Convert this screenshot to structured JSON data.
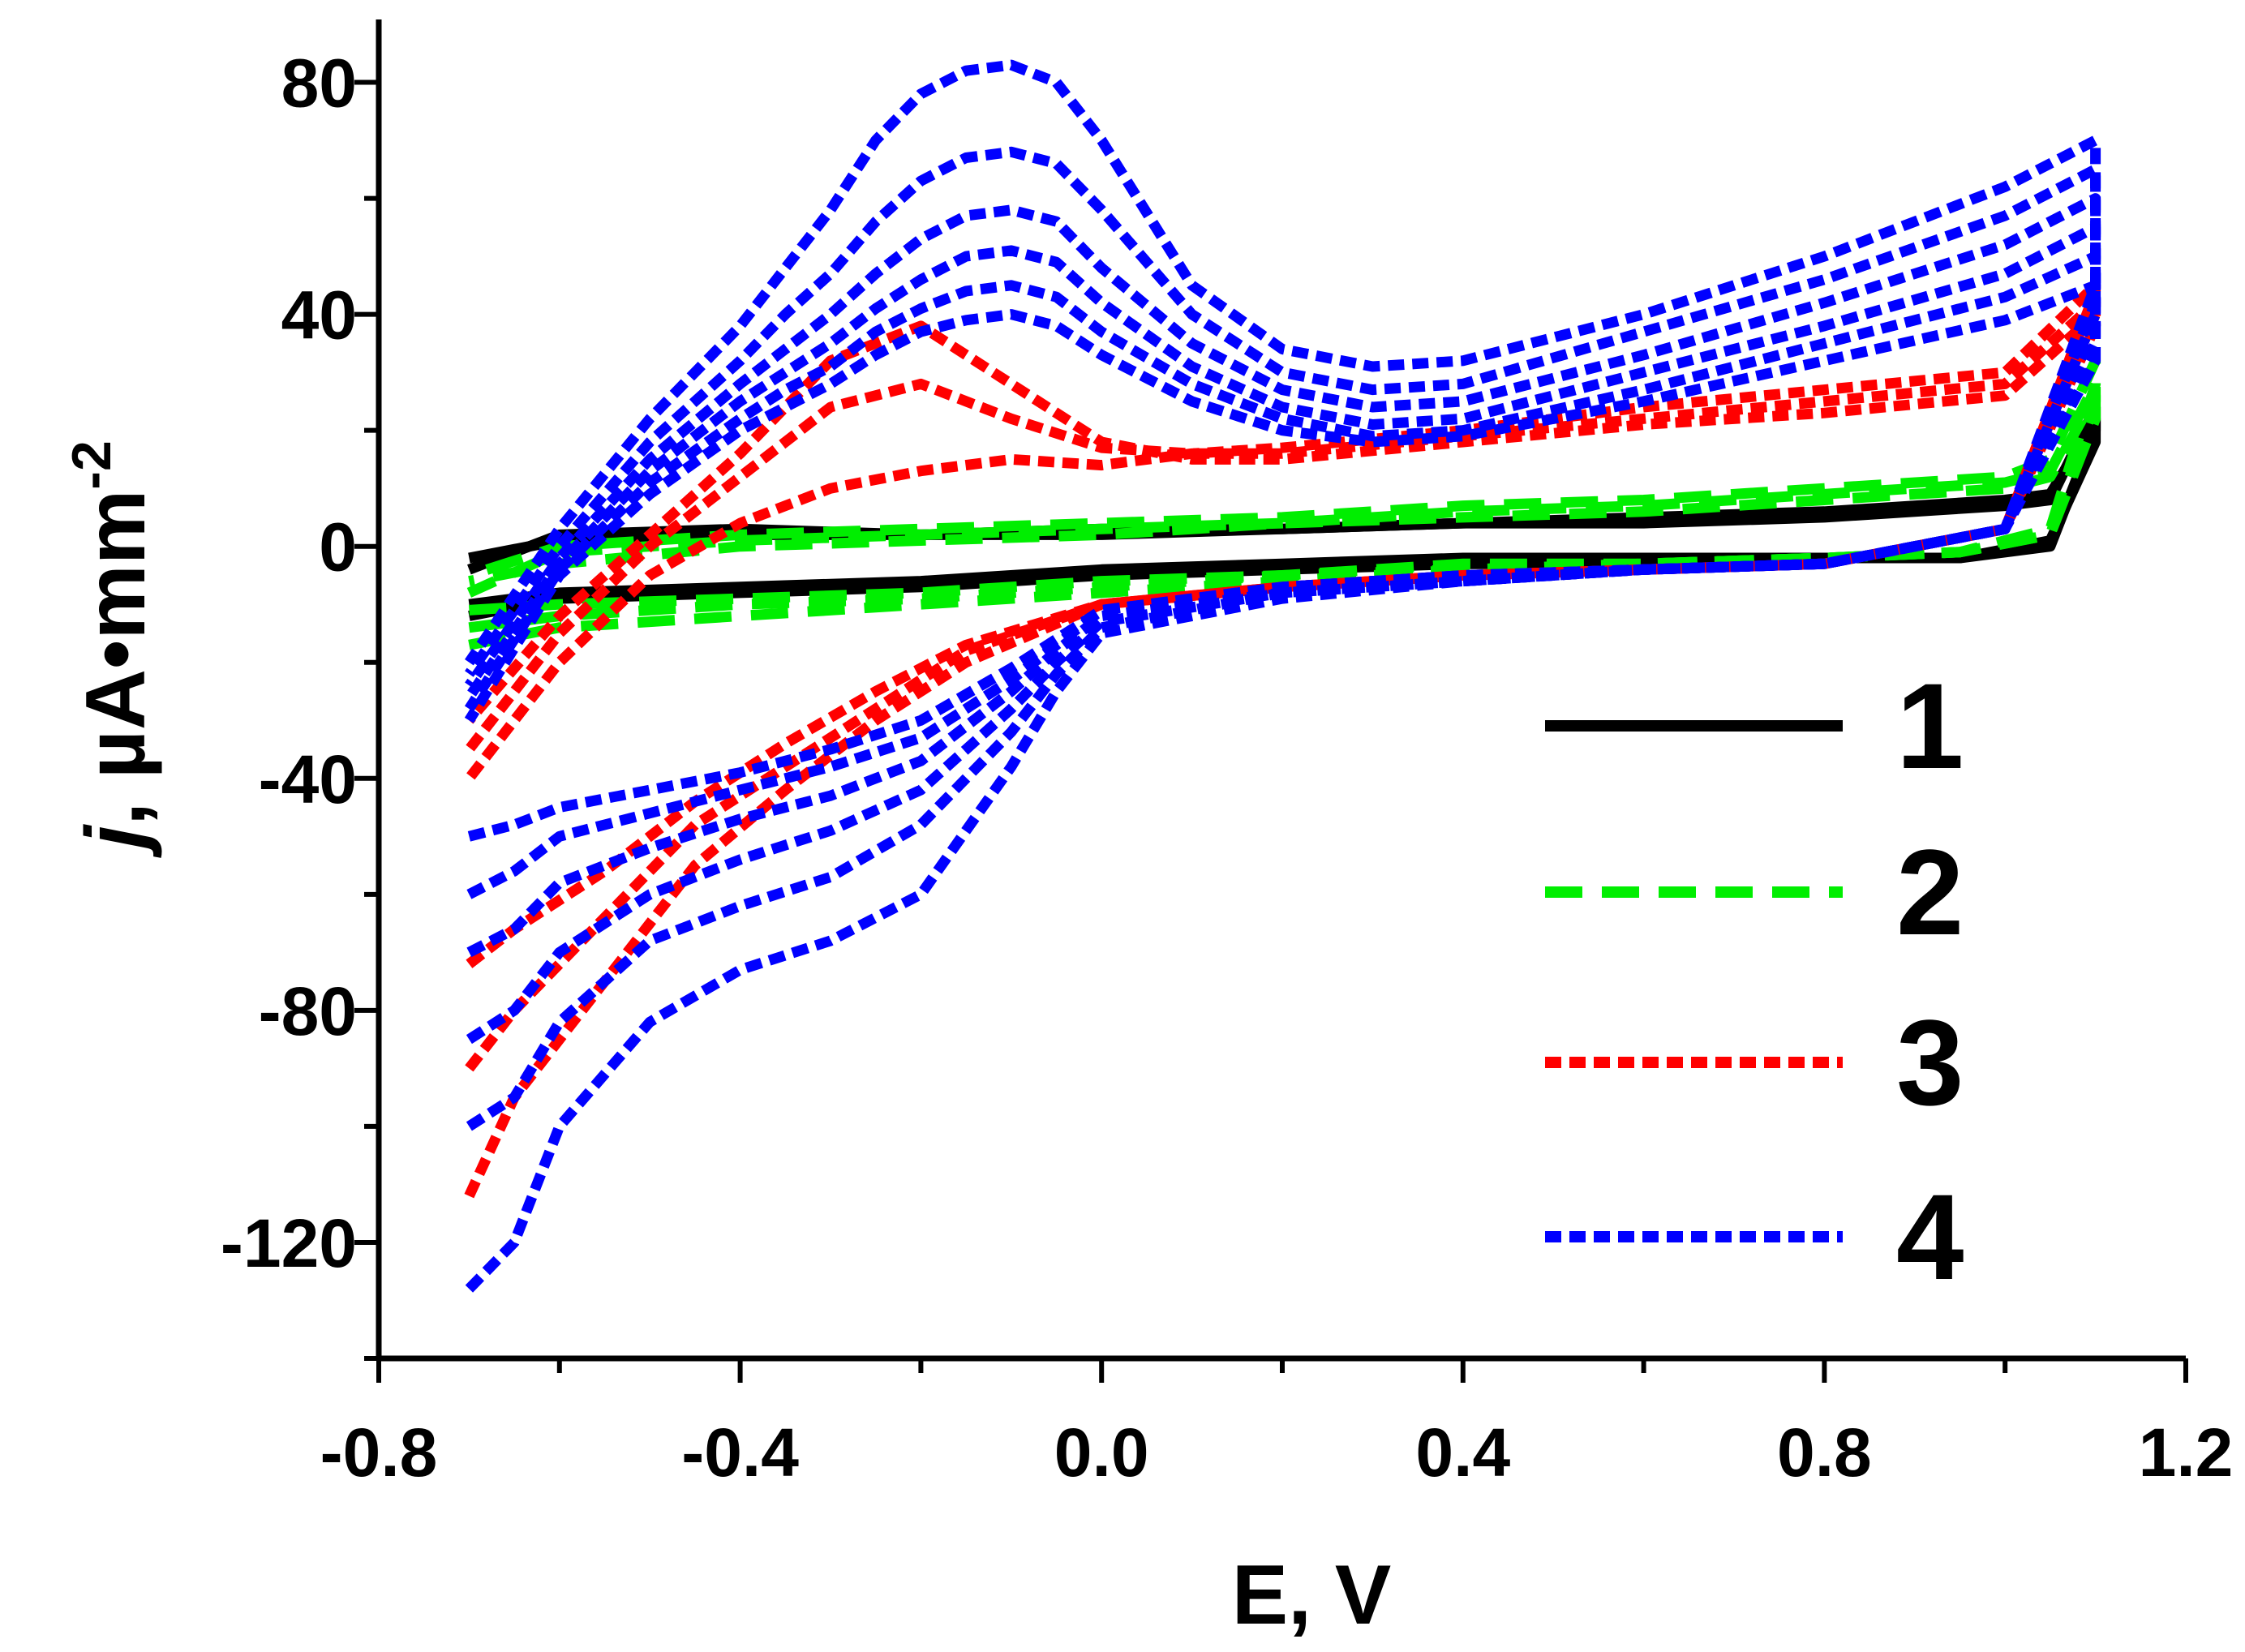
{
  "chart_data": {
    "type": "line",
    "title": "",
    "xlabel": "E, V",
    "ylabel": {
      "italic": "j",
      "rest": ", µA•mm",
      "sup": "-2"
    },
    "xlim": [
      -0.8,
      1.2
    ],
    "ylim": [
      -140,
      90
    ],
    "xticks": [
      -0.8,
      -0.4,
      0.0,
      0.4,
      0.8,
      1.2
    ],
    "xtick_labels": [
      "-0.8",
      "-0.4",
      "0.0",
      "0.4",
      "0.8",
      "1.2"
    ],
    "yticks": [
      80,
      40,
      0,
      -40,
      -80,
      -120
    ],
    "ytick_labels": [
      "80",
      "40",
      "0",
      "-40",
      "-80",
      "-120"
    ],
    "legend_position": "lower-right",
    "series": [
      {
        "name": "1",
        "color": "#000000",
        "dash": "solid",
        "cycles": [
          {
            "x": [
              -0.7,
              -0.6,
              -0.4,
              -0.2,
              0.0,
              0.2,
              0.4,
              0.6,
              0.8,
              0.95,
              1.05,
              1.1,
              1.1,
              1.05,
              1.0,
              0.8,
              0.6,
              0.4,
              0.2,
              0.0,
              -0.2,
              -0.4,
              -0.6,
              -0.7
            ],
            "y": [
              -10,
              -8,
              -7,
              -6,
              -4,
              -3,
              -2,
              -2,
              -2,
              -2,
              0,
              20,
              24,
              8,
              7,
              5,
              4,
              4,
              3,
              2,
              2,
              2,
              1,
              -2
            ]
          },
          {
            "x": [
              -0.7,
              -0.6,
              -0.4,
              -0.2,
              0.0,
              0.2,
              0.4,
              0.6,
              0.8,
              0.95,
              1.05,
              1.1,
              1.1,
              1.05,
              1.0,
              0.8,
              0.6,
              0.4,
              0.2,
              0.0,
              -0.2,
              -0.4,
              -0.6,
              -0.7
            ],
            "y": [
              -12,
              -9,
              -8,
              -7,
              -5,
              -4,
              -3,
              -3,
              -2,
              -2,
              1,
              18,
              22,
              9,
              8,
              6,
              5,
              4,
              3,
              3,
              2,
              3,
              2,
              -4
            ]
          }
        ]
      },
      {
        "name": "2",
        "color": "#00ee00",
        "dash": "long-dash",
        "cycles": [
          {
            "x": [
              -0.7,
              -0.6,
              -0.4,
              -0.2,
              0.0,
              0.2,
              0.4,
              0.6,
              0.8,
              0.95,
              1.05,
              1.1,
              1.1,
              1.05,
              1.0,
              0.8,
              0.6,
              0.4,
              0.2,
              0.0,
              -0.2,
              -0.4,
              -0.6,
              -0.7
            ],
            "y": [
              -17,
              -14,
              -12,
              -10,
              -8,
              -6,
              -4,
              -3,
              -2,
              -1,
              3,
              28,
              32,
              15,
              12,
              10,
              8,
              7,
              5,
              4,
              3,
              2,
              0,
              -5
            ]
          },
          {
            "x": [
              -0.7,
              -0.6,
              -0.4,
              -0.2,
              0.0,
              0.2,
              0.4,
              0.6,
              0.8,
              0.95,
              1.05,
              1.1,
              1.1,
              1.05,
              1.0,
              0.8,
              0.6,
              0.4,
              0.2,
              0.0,
              -0.2,
              -0.4,
              -0.6,
              -0.7
            ],
            "y": [
              -14,
              -12,
              -10,
              -9,
              -7,
              -5,
              -4,
              -3,
              -2,
              -1,
              2,
              25,
              28,
              13,
              11,
              9,
              7,
              6,
              4,
              3,
              2,
              1,
              -1,
              -8
            ]
          },
          {
            "x": [
              -0.7,
              -0.6,
              -0.4,
              -0.2,
              0.0,
              0.2,
              0.4,
              0.6,
              0.8,
              0.95,
              1.05,
              1.1,
              1.1,
              1.05,
              1.0,
              0.8,
              0.6,
              0.4,
              0.2,
              0.0,
              -0.2,
              -0.4,
              -0.6,
              -0.7
            ],
            "y": [
              -11,
              -10,
              -9,
              -8,
              -6,
              -5,
              -3,
              -3,
              -2,
              -1,
              2,
              22,
              26,
              12,
              10,
              8,
              6,
              5,
              4,
              2,
              1,
              0,
              -3,
              -6
            ]
          }
        ]
      },
      {
        "name": "3",
        "color": "#ff0000",
        "dash": "short-dash",
        "cycles": [
          {
            "x": [
              -0.7,
              -0.65,
              -0.55,
              -0.45,
              -0.35,
              -0.25,
              -0.15,
              0.0,
              0.2,
              0.4,
              0.6,
              0.8,
              1.0,
              1.1,
              1.1,
              1.0,
              0.8,
              0.6,
              0.4,
              0.2,
              0.1,
              0.0,
              -0.1,
              -0.2,
              -0.3,
              -0.4,
              -0.5,
              -0.6,
              -0.7
            ],
            "y": [
              -112,
              -95,
              -75,
              -55,
              -42,
              -30,
              -20,
              -10,
              -7,
              -5,
              -4,
              -3,
              3,
              44,
              45,
              30,
              27,
              24,
              20,
              17,
              16,
              14,
              15,
              13,
              10,
              4,
              -5,
              -20,
              -40
            ]
          },
          {
            "x": [
              -0.7,
              -0.65,
              -0.55,
              -0.45,
              -0.35,
              -0.25,
              -0.15,
              0.0,
              0.2,
              0.4,
              0.6,
              0.8,
              1.0,
              1.1,
              1.1,
              1.0,
              0.8,
              0.6,
              0.4,
              0.2,
              0.1,
              0.0,
              -0.1,
              -0.2,
              -0.3,
              -0.4,
              -0.5,
              -0.6,
              -0.7
            ],
            "y": [
              -90,
              -80,
              -64,
              -48,
              -38,
              -28,
              -18,
              -10,
              -7,
              -5,
              -4,
              -3,
              3,
              40,
              42,
              28,
              25,
              22,
              19,
              16,
              16,
              17,
              22,
              28,
              24,
              12,
              0,
              -15,
              -35
            ]
          },
          {
            "x": [
              -0.7,
              -0.65,
              -0.55,
              -0.45,
              -0.35,
              -0.25,
              -0.15,
              0.0,
              0.2,
              0.4,
              0.6,
              0.8,
              1.0,
              1.1,
              1.1,
              1.0,
              0.8,
              0.6,
              0.4,
              0.2,
              0.1,
              0.0,
              -0.1,
              -0.2,
              -0.3,
              -0.4,
              -0.5,
              -0.6,
              -0.7
            ],
            "y": [
              -72,
              -66,
              -56,
              -44,
              -34,
              -25,
              -17,
              -10,
              -7,
              -5,
              -4,
              -3,
              3,
              38,
              40,
              26,
              23,
              21,
              18,
              15,
              15,
              18,
              28,
              38,
              32,
              16,
              2,
              -12,
              -30
            ]
          }
        ]
      },
      {
        "name": "4",
        "color": "#0000ff",
        "dash": "short-dash",
        "cycles": [
          {
            "x": [
              -0.7,
              -0.65,
              -0.6,
              -0.5,
              -0.4,
              -0.3,
              -0.2,
              -0.1,
              -0.05,
              0.0,
              0.2,
              0.4,
              0.6,
              0.8,
              1.0,
              1.1,
              1.1,
              1.0,
              0.8,
              0.6,
              0.4,
              0.3,
              0.2,
              0.1,
              0.0,
              -0.05,
              -0.1,
              -0.15,
              -0.2,
              -0.25,
              -0.3,
              -0.35,
              -0.4,
              -0.5,
              -0.6,
              -0.7
            ],
            "y": [
              -128,
              -120,
              -100,
              -82,
              -73,
              -68,
              -60,
              -38,
              -25,
              -15,
              -9,
              -6,
              -4,
              -3,
              3,
              45,
              70,
              62,
              50,
              40,
              32,
              31,
              34,
              45,
              70,
              80,
              83,
              82,
              78,
              70,
              58,
              48,
              38,
              22,
              3,
              -20
            ]
          },
          {
            "x": [
              -0.7,
              -0.65,
              -0.6,
              -0.5,
              -0.4,
              -0.3,
              -0.2,
              -0.1,
              -0.05,
              0.0,
              0.2,
              0.4,
              0.6,
              0.8,
              1.0,
              1.1,
              1.1,
              1.0,
              0.8,
              0.6,
              0.4,
              0.3,
              0.2,
              0.1,
              0.0,
              -0.05,
              -0.1,
              -0.15,
              -0.2,
              -0.25,
              -0.3,
              -0.35,
              -0.4,
              -0.5,
              -0.6,
              -0.7
            ],
            "y": [
              -100,
              -95,
              -82,
              -68,
              -62,
              -57,
              -48,
              -32,
              -22,
              -14,
              -8,
              -6,
              -4,
              -3,
              3,
              42,
              65,
              57,
              46,
              37,
              28,
              27,
              30,
              40,
              58,
              66,
              68,
              67,
              63,
              56,
              47,
              40,
              32,
              18,
              0,
              -22
            ]
          },
          {
            "x": [
              -0.7,
              -0.65,
              -0.6,
              -0.5,
              -0.4,
              -0.3,
              -0.2,
              -0.1,
              -0.05,
              0.0,
              0.2,
              0.4,
              0.6,
              0.8,
              1.0,
              1.1,
              1.1,
              1.0,
              0.8,
              0.6,
              0.4,
              0.3,
              0.2,
              0.1,
              0.0,
              -0.05,
              -0.1,
              -0.15,
              -0.2,
              -0.25,
              -0.3,
              -0.35,
              -0.4,
              -0.5,
              -0.6,
              -0.7
            ],
            "y": [
              -85,
              -80,
              -70,
              -60,
              -54,
              -49,
              -42,
              -28,
              -20,
              -13,
              -8,
              -6,
              -4,
              -3,
              3,
              40,
              60,
              52,
              42,
              33,
              25,
              24,
              27,
              35,
              48,
              56,
              58,
              57,
              53,
              47,
              40,
              34,
              28,
              15,
              -2,
              -24
            ]
          },
          {
            "x": [
              -0.7,
              -0.65,
              -0.6,
              -0.5,
              -0.4,
              -0.3,
              -0.2,
              -0.1,
              -0.05,
              0.0,
              0.2,
              0.4,
              0.6,
              0.8,
              1.0,
              1.1,
              1.1,
              1.0,
              0.8,
              0.6,
              0.4,
              0.3,
              0.2,
              0.1,
              0.0,
              -0.05,
              -0.1,
              -0.15,
              -0.2,
              -0.25,
              -0.3,
              -0.35,
              -0.4,
              -0.5,
              -0.6,
              -0.7
            ],
            "y": [
              -70,
              -66,
              -58,
              -52,
              -47,
              -43,
              -37,
              -25,
              -18,
              -12,
              -8,
              -6,
              -4,
              -3,
              3,
              38,
              55,
              47,
              38,
              30,
              22,
              21,
              24,
              31,
              42,
              49,
              51,
              50,
              46,
              41,
              35,
              30,
              25,
              13,
              -3,
              -26
            ]
          },
          {
            "x": [
              -0.7,
              -0.65,
              -0.6,
              -0.5,
              -0.4,
              -0.3,
              -0.2,
              -0.1,
              -0.05,
              0.0,
              0.2,
              0.4,
              0.6,
              0.8,
              1.0,
              1.1,
              1.1,
              1.0,
              0.8,
              0.6,
              0.4,
              0.3,
              0.2,
              0.1,
              0.0,
              -0.05,
              -0.1,
              -0.15,
              -0.2,
              -0.25,
              -0.3,
              -0.35,
              -0.4,
              -0.5,
              -0.6,
              -0.7
            ],
            "y": [
              -60,
              -56,
              -50,
              -46,
              -42,
              -38,
              -33,
              -23,
              -17,
              -11,
              -7,
              -5,
              -4,
              -3,
              3,
              35,
              50,
              43,
              35,
              27,
              20,
              19,
              22,
              28,
              37,
              43,
              45,
              44,
              41,
              37,
              31,
              27,
              22,
              11,
              -4,
              -28
            ]
          },
          {
            "x": [
              -0.7,
              -0.65,
              -0.6,
              -0.5,
              -0.4,
              -0.3,
              -0.2,
              -0.1,
              -0.05,
              0.0,
              0.2,
              0.4,
              0.6,
              0.8,
              1.0,
              1.1,
              1.1,
              1.0,
              0.8,
              0.6,
              0.4,
              0.3,
              0.2,
              0.1,
              0.0,
              -0.05,
              -0.1,
              -0.15,
              -0.2,
              -0.25,
              -0.3,
              -0.35,
              -0.4,
              -0.5,
              -0.6,
              -0.7
            ],
            "y": [
              -50,
              -48,
              -45,
              -42,
              -39,
              -35,
              -30,
              -21,
              -16,
              -11,
              -7,
              -5,
              -4,
              -3,
              3,
              32,
              45,
              39,
              32,
              25,
              19,
              18,
              20,
              25,
              33,
              38,
              40,
              39,
              37,
              33,
              28,
              24,
              20,
              9,
              -5,
              -30
            ]
          }
        ]
      }
    ]
  }
}
